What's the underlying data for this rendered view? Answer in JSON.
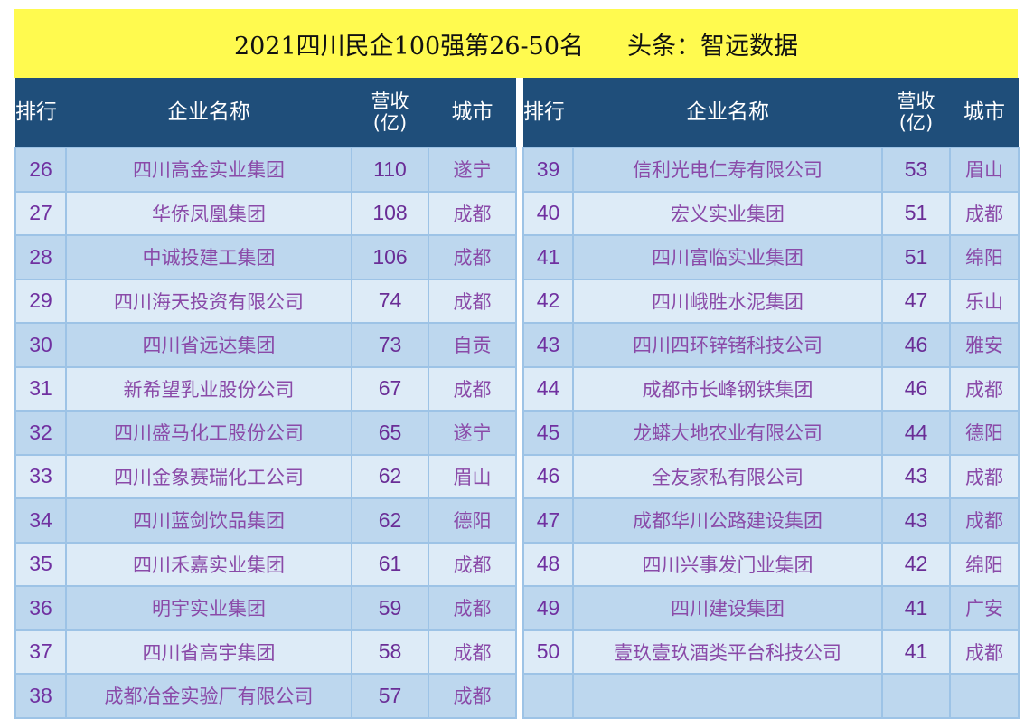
{
  "title": {
    "main": "2021四川民企100强第26-50名",
    "source": "头条：智远数据"
  },
  "colors": {
    "title_bg": "#fffa4f",
    "header_bg": "#1f4e7a",
    "row_odd_bg": "#bdd7ee",
    "row_even_bg": "#ddebf7",
    "text_purple": "#7030a0"
  },
  "headers": {
    "rank": "排行",
    "name": "企业名称",
    "revenue_line1": "营收",
    "revenue_line2": "(亿)",
    "city": "城市"
  },
  "left_table": {
    "rows": [
      {
        "rank": "26",
        "name": "四川高金实业集团",
        "revenue": "110",
        "city": "遂宁"
      },
      {
        "rank": "27",
        "name": "华侨凤凰集团",
        "revenue": "108",
        "city": "成都"
      },
      {
        "rank": "28",
        "name": "中诚投建工集团",
        "revenue": "106",
        "city": "成都"
      },
      {
        "rank": "29",
        "name": "四川海天投资有限公司",
        "revenue": "74",
        "city": "成都"
      },
      {
        "rank": "30",
        "name": "四川省远达集团",
        "revenue": "73",
        "city": "自贡"
      },
      {
        "rank": "31",
        "name": "新希望乳业股份公司",
        "revenue": "67",
        "city": "成都"
      },
      {
        "rank": "32",
        "name": "四川盛马化工股份公司",
        "revenue": "65",
        "city": "遂宁"
      },
      {
        "rank": "33",
        "name": "四川金象赛瑞化工公司",
        "revenue": "62",
        "city": "眉山"
      },
      {
        "rank": "34",
        "name": "四川蓝剑饮品集团",
        "revenue": "62",
        "city": "德阳"
      },
      {
        "rank": "35",
        "name": "四川禾嘉实业集团",
        "revenue": "61",
        "city": "成都"
      },
      {
        "rank": "36",
        "name": "明宇实业集团",
        "revenue": "59",
        "city": "成都"
      },
      {
        "rank": "37",
        "name": "四川省高宇集团",
        "revenue": "58",
        "city": "成都"
      },
      {
        "rank": "38",
        "name": "成都冶金实验厂有限公司",
        "revenue": "57",
        "city": "成都"
      }
    ]
  },
  "right_table": {
    "rows": [
      {
        "rank": "39",
        "name": "信利光电仁寿有限公司",
        "revenue": "53",
        "city": "眉山"
      },
      {
        "rank": "40",
        "name": "宏义实业集团",
        "revenue": "51",
        "city": "成都"
      },
      {
        "rank": "41",
        "name": "四川富临实业集团",
        "revenue": "51",
        "city": "绵阳"
      },
      {
        "rank": "42",
        "name": "四川峨胜水泥集团",
        "revenue": "47",
        "city": "乐山"
      },
      {
        "rank": "43",
        "name": "四川四环锌锗科技公司",
        "revenue": "46",
        "city": "雅安"
      },
      {
        "rank": "44",
        "name": "成都市长峰钢铁集团",
        "revenue": "46",
        "city": "成都"
      },
      {
        "rank": "45",
        "name": "龙蟒大地农业有限公司",
        "revenue": "44",
        "city": "德阳"
      },
      {
        "rank": "46",
        "name": "全友家私有限公司",
        "revenue": "43",
        "city": "成都"
      },
      {
        "rank": "47",
        "name": "成都华川公路建设集团",
        "revenue": "43",
        "city": "成都"
      },
      {
        "rank": "48",
        "name": "四川兴事发门业集团",
        "revenue": "42",
        "city": "绵阳"
      },
      {
        "rank": "49",
        "name": "四川建设集团",
        "revenue": "41",
        "city": "广安"
      },
      {
        "rank": "50",
        "name": "壹玖壹玖酒类平台科技公司",
        "revenue": "41",
        "city": "成都"
      },
      {
        "rank": "",
        "name": "",
        "revenue": "",
        "city": ""
      }
    ]
  }
}
